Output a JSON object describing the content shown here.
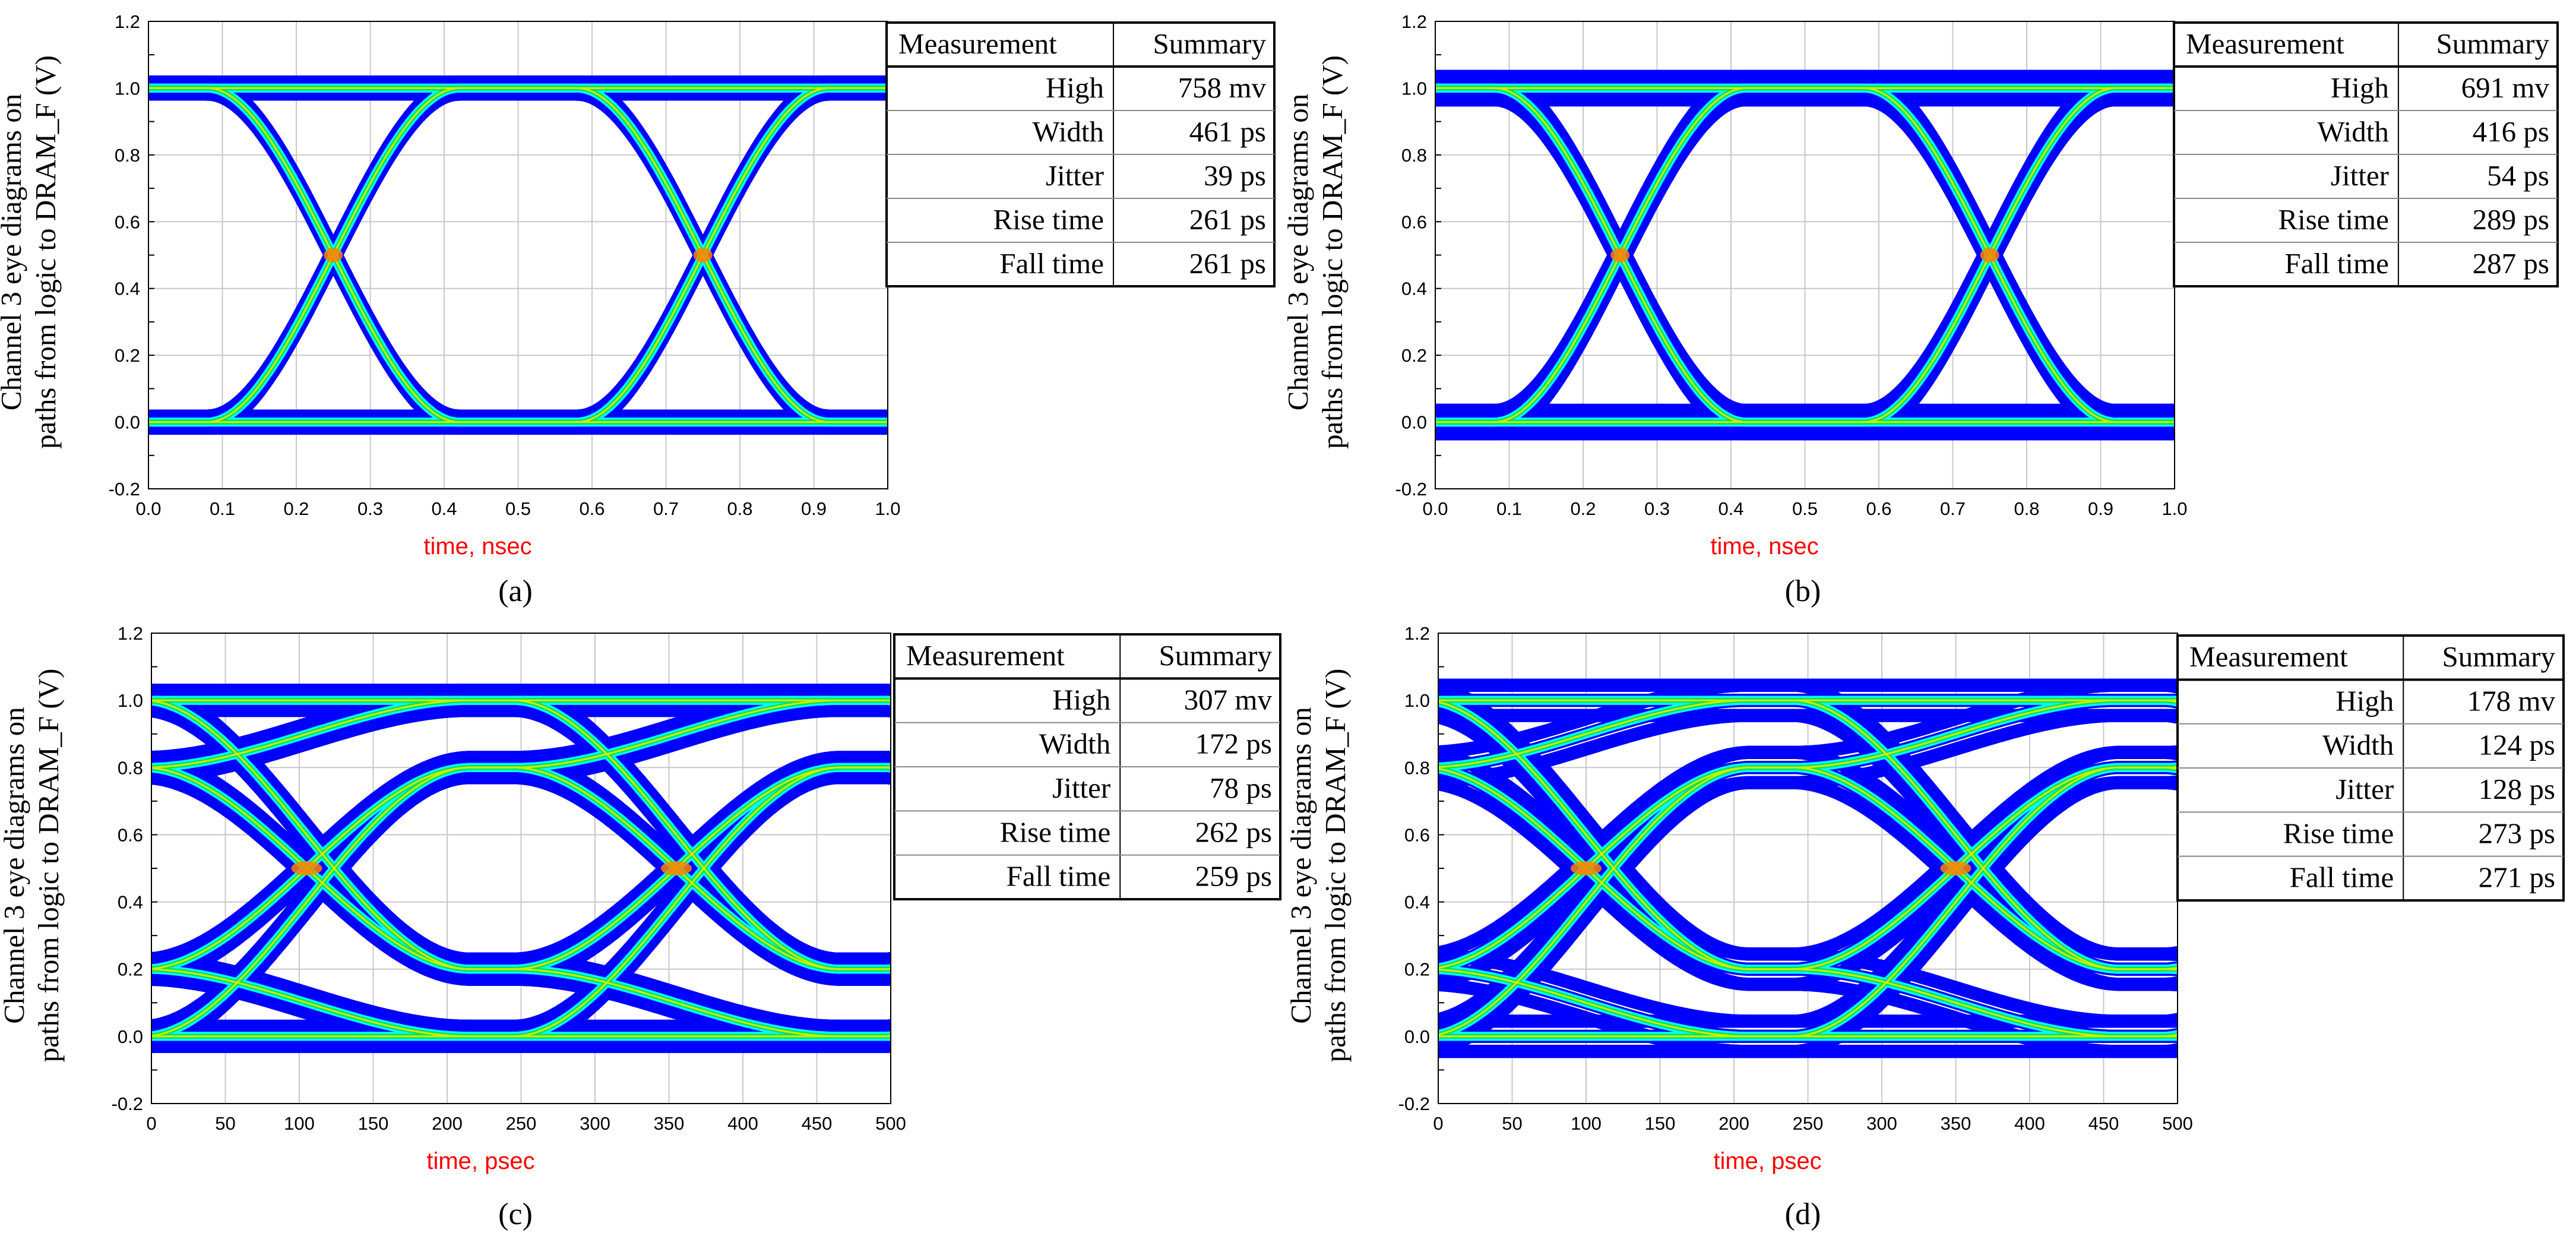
{
  "figure": {
    "colors": {
      "grid": "#c8c8c8",
      "axis": "#000000",
      "xlabel": "#ff0000",
      "eye_outer": "#0000ff",
      "eye_cyan": "#00ffff",
      "eye_green": "#00e060",
      "eye_core": "#c8f000",
      "eye_hot": "#ff8000"
    },
    "panels": [
      {
        "id": "a",
        "caption": "(a)",
        "chart_data": {
          "type": "eye-diagram",
          "title": "",
          "ylabel_line1": "Channel 3 eye diagrams on",
          "ylabel_line2": "paths from logic to DRAM_F (V)",
          "xlabel": "time, nsec",
          "xlim": [
            0,
            1.0
          ],
          "ylim": [
            -0.2,
            1.2
          ],
          "xticks": [
            0.0,
            0.1,
            0.2,
            0.3,
            0.4,
            0.5,
            0.6,
            0.7,
            0.8,
            0.9,
            1.0
          ],
          "xtick_labels": [
            "0.0",
            "0.1",
            "0.2",
            "0.3",
            "0.4",
            "0.5",
            "0.6",
            "0.7",
            "0.8",
            "0.9",
            "1.0"
          ],
          "yticks": [
            -0.2,
            0.0,
            0.2,
            0.4,
            0.6,
            0.8,
            1.0,
            1.2
          ],
          "ytick_labels": [
            "-0.2",
            "0.0",
            "0.2",
            "0.4",
            "0.6",
            "0.8",
            "1.0",
            "1.2"
          ],
          "unit_interval": 0.5,
          "crossings": [
            0.25,
            0.75
          ],
          "crossing_level": 0.5,
          "high_level": 1.0,
          "low_level": 0.0,
          "band_spread": 0.018,
          "grid": true
        },
        "table": {
          "headers": [
            "Measurement",
            "Summary"
          ],
          "rows": [
            [
              "High",
              "758 mv"
            ],
            [
              "Width",
              "461 ps"
            ],
            [
              "Jitter",
              "39 ps"
            ],
            [
              "Rise time",
              "261 ps"
            ],
            [
              "Fall time",
              "261 ps"
            ]
          ]
        }
      },
      {
        "id": "b",
        "caption": "(b)",
        "chart_data": {
          "type": "eye-diagram",
          "title": "",
          "ylabel_line1": "Channel 3 eye diagrams on",
          "ylabel_line2": "paths from logic to DRAM_F (V)",
          "xlabel": "time, nsec",
          "xlim": [
            0,
            1.0
          ],
          "ylim": [
            -0.2,
            1.2
          ],
          "xticks": [
            0.0,
            0.1,
            0.2,
            0.3,
            0.4,
            0.5,
            0.6,
            0.7,
            0.8,
            0.9,
            1.0
          ],
          "xtick_labels": [
            "0.0",
            "0.1",
            "0.2",
            "0.3",
            "0.4",
            "0.5",
            "0.6",
            "0.7",
            "0.8",
            "0.9",
            "1.0"
          ],
          "yticks": [
            -0.2,
            0.0,
            0.2,
            0.4,
            0.6,
            0.8,
            1.0,
            1.2
          ],
          "ytick_labels": [
            "-0.2",
            "0.0",
            "0.2",
            "0.4",
            "0.6",
            "0.8",
            "1.0",
            "1.2"
          ],
          "unit_interval": 0.5,
          "crossings": [
            0.25,
            0.75
          ],
          "crossing_level": 0.5,
          "high_level": 1.0,
          "low_level": 0.0,
          "band_spread": 0.035,
          "grid": true
        },
        "table": {
          "headers": [
            "Measurement",
            "Summary"
          ],
          "rows": [
            [
              "High",
              "691 mv"
            ],
            [
              "Width",
              "416 ps"
            ],
            [
              "Jitter",
              "54 ps"
            ],
            [
              "Rise time",
              "289 ps"
            ],
            [
              "Fall time",
              "287 ps"
            ]
          ]
        }
      },
      {
        "id": "c",
        "caption": "(c)",
        "chart_data": {
          "type": "eye-diagram",
          "title": "",
          "ylabel_line1": "Channel 3 eye diagrams on",
          "ylabel_line2": "paths from logic to DRAM_F (V)",
          "xlabel": "time, psec",
          "xlim": [
            0,
            500
          ],
          "ylim": [
            -0.2,
            1.2
          ],
          "xticks": [
            0,
            50,
            100,
            150,
            200,
            250,
            300,
            350,
            400,
            450,
            500
          ],
          "xtick_labels": [
            "0",
            "50",
            "100",
            "150",
            "200",
            "250",
            "300",
            "350",
            "400",
            "450",
            "500"
          ],
          "yticks": [
            -0.2,
            0.0,
            0.2,
            0.4,
            0.6,
            0.8,
            1.0,
            1.2
          ],
          "ytick_labels": [
            "-0.2",
            "0.0",
            "0.2",
            "0.4",
            "0.6",
            "0.8",
            "1.0",
            "1.2"
          ],
          "unit_interval": 250,
          "crossings": [
            105,
            355
          ],
          "crossing_level": 0.5,
          "high_level": 1.0,
          "low_level": 0.0,
          "band_spread": 0.03,
          "grid": true
        },
        "table": {
          "headers": [
            "Measurement",
            "Summary"
          ],
          "rows": [
            [
              "High",
              "307 mv"
            ],
            [
              "Width",
              "172 ps"
            ],
            [
              "Jitter",
              "78 ps"
            ],
            [
              "Rise time",
              "262 ps"
            ],
            [
              "Fall time",
              "259 ps"
            ]
          ]
        }
      },
      {
        "id": "d",
        "caption": "(d)",
        "chart_data": {
          "type": "eye-diagram",
          "title": "",
          "ylabel_line1": "Channel 3 eye diagrams on",
          "ylabel_line2": "paths from logic to DRAM_F (V)",
          "xlabel": "time, psec",
          "xlim": [
            0,
            500
          ],
          "ylim": [
            -0.2,
            1.2
          ],
          "xticks": [
            0,
            50,
            100,
            150,
            200,
            250,
            300,
            350,
            400,
            450,
            500
          ],
          "xtick_labels": [
            "0",
            "50",
            "100",
            "150",
            "200",
            "250",
            "300",
            "350",
            "400",
            "450",
            "500"
          ],
          "yticks": [
            -0.2,
            0.0,
            0.2,
            0.4,
            0.6,
            0.8,
            1.0,
            1.2
          ],
          "ytick_labels": [
            "-0.2",
            "0.0",
            "0.2",
            "0.4",
            "0.6",
            "0.8",
            "1.0",
            "1.2"
          ],
          "unit_interval": 250,
          "crossings": [
            100,
            350
          ],
          "crossing_level": 0.5,
          "high_level": 1.0,
          "low_level": 0.0,
          "band_spread": 0.045,
          "grid": true
        },
        "table": {
          "headers": [
            "Measurement",
            "Summary"
          ],
          "rows": [
            [
              "High",
              "178 mv"
            ],
            [
              "Width",
              "124 ps"
            ],
            [
              "Jitter",
              "128 ps"
            ],
            [
              "Rise time",
              "273 ps"
            ],
            [
              "Fall time",
              "271 ps"
            ]
          ]
        }
      }
    ]
  }
}
